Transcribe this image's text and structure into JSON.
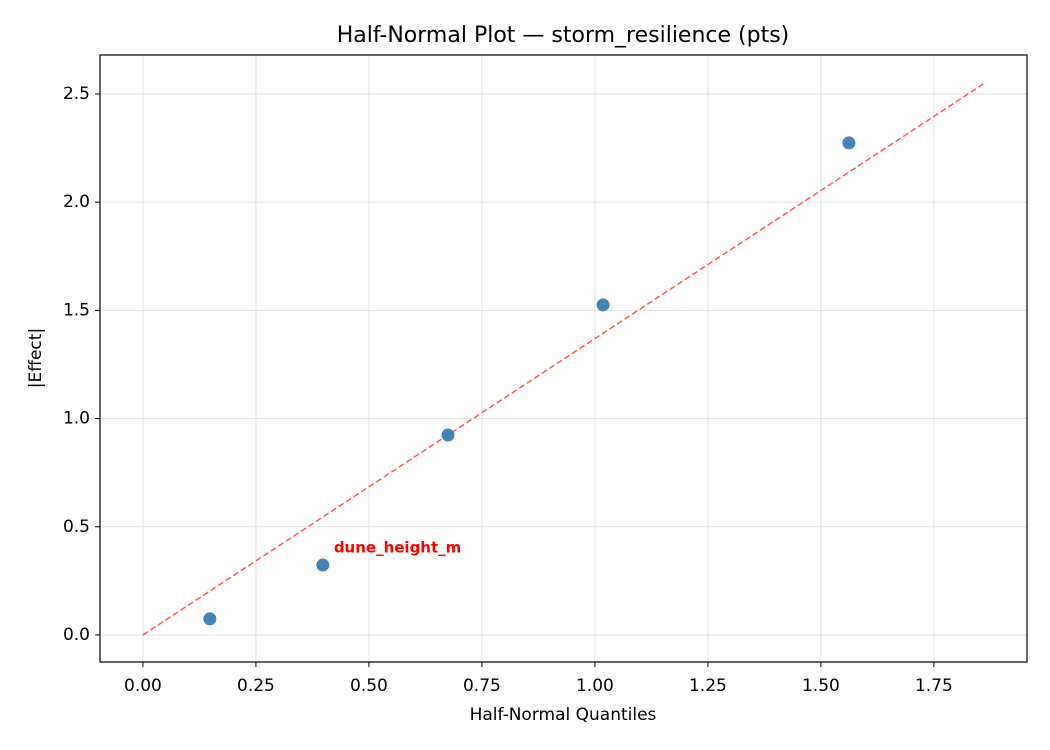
{
  "chart_data": {
    "type": "scatter",
    "title": "Half-Normal Plot — storm_resilience (pts)",
    "x_label": "Half-Normal Quantiles",
    "y_label": "|Effect|",
    "series": [
      {
        "name": "effects",
        "color": "#4682b4",
        "x": [
          0.148,
          0.398,
          0.675,
          1.018,
          1.562
        ],
        "values": [
          0.074,
          0.323,
          0.924,
          1.525,
          2.274
        ]
      }
    ],
    "reference_line": {
      "x": [
        0,
        1.863
      ],
      "y": [
        0,
        2.551
      ],
      "color": "#f0605a"
    },
    "annotations": [
      {
        "text": "dune_height_m",
        "x": 0.398,
        "y": 0.323,
        "color": "#ff0000"
      }
    ],
    "xlim": [
      -0.095,
      1.956
    ],
    "ylim": [
      -0.125,
      2.68
    ],
    "xticks": [
      {
        "value": 0,
        "label": "0.00"
      },
      0.25,
      {
        "value": 0.5,
        "label": "0.50"
      },
      0.75,
      {
        "value": 1,
        "label": "1.00"
      },
      1.25,
      {
        "value": 1.5,
        "label": "1.50"
      },
      1.75
    ],
    "yticks": [
      {
        "value": 0,
        "label": "0.0"
      },
      0.5,
      {
        "value": 1,
        "label": "1.0"
      },
      1.5,
      {
        "value": 2,
        "label": "2.0"
      },
      2.5
    ],
    "grid": true
  }
}
